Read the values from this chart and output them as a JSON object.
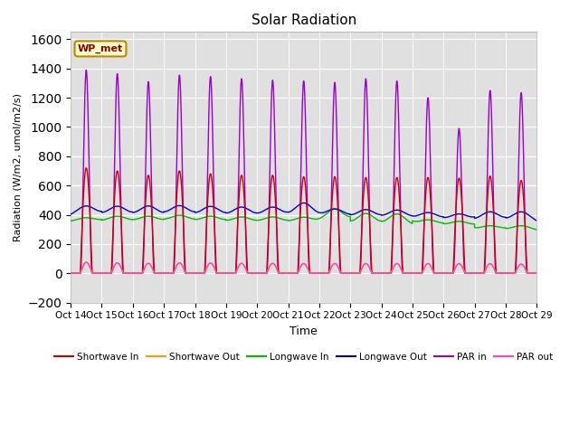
{
  "title": "Solar Radiation",
  "xlabel": "Time",
  "ylabel": "Radiation (W/m2, umol/m2/s)",
  "ylim": [
    -200,
    1650
  ],
  "yticks": [
    -200,
    0,
    200,
    400,
    600,
    800,
    1000,
    1200,
    1400,
    1600
  ],
  "x_tick_labels": [
    "Oct 14",
    "Oct 15",
    "Oct 16",
    "Oct 17",
    "Oct 18",
    "Oct 19",
    "Oct 20",
    "Oct 21",
    "Oct 22",
    "Oct 23",
    "Oct 24",
    "Oct 25",
    "Oct 26",
    "Oct 27",
    "Oct 28",
    "Oct 29"
  ],
  "n_days": 15,
  "pts_per_day": 288,
  "sw_in_peaks": [
    720,
    700,
    670,
    700,
    680,
    670,
    670,
    660,
    660,
    655,
    655,
    655,
    650,
    665,
    635
  ],
  "sw_out_peaks": [
    75,
    72,
    68,
    72,
    70,
    68,
    68,
    67,
    67,
    67,
    67,
    67,
    66,
    66,
    63
  ],
  "lw_in_base": [
    350,
    345,
    345,
    348,
    345,
    340,
    340,
    338,
    338,
    308,
    305,
    325,
    320,
    295,
    290
  ],
  "lw_in_day_bump": [
    30,
    45,
    45,
    48,
    45,
    45,
    45,
    45,
    100,
    100,
    100,
    40,
    35,
    30,
    35
  ],
  "lw_out_base": [
    385,
    378,
    375,
    380,
    375,
    372,
    372,
    370,
    370,
    365,
    362,
    360,
    355,
    345,
    340
  ],
  "lw_out_day_bump": [
    75,
    80,
    85,
    82,
    82,
    80,
    80,
    110,
    70,
    70,
    70,
    55,
    50,
    75,
    80
  ],
  "par_in_peaks": [
    1390,
    1365,
    1310,
    1355,
    1345,
    1330,
    1320,
    1315,
    1305,
    1330,
    1315,
    1200,
    990,
    1250,
    1235
  ],
  "par_out_peaks": [
    75,
    72,
    68,
    72,
    70,
    68,
    68,
    67,
    67,
    67,
    67,
    67,
    66,
    66,
    63
  ],
  "colors": {
    "sw_in": "#cc0000",
    "sw_out": "#ff9900",
    "lw_in": "#00bb00",
    "lw_out": "#0000cc",
    "par_in": "#9900cc",
    "par_out": "#ff44bb"
  },
  "legend_box_label": "WP_met",
  "bg_color": "#e0e0e0",
  "line_width": 1.0,
  "figsize": [
    6.4,
    4.8
  ],
  "dpi": 100
}
